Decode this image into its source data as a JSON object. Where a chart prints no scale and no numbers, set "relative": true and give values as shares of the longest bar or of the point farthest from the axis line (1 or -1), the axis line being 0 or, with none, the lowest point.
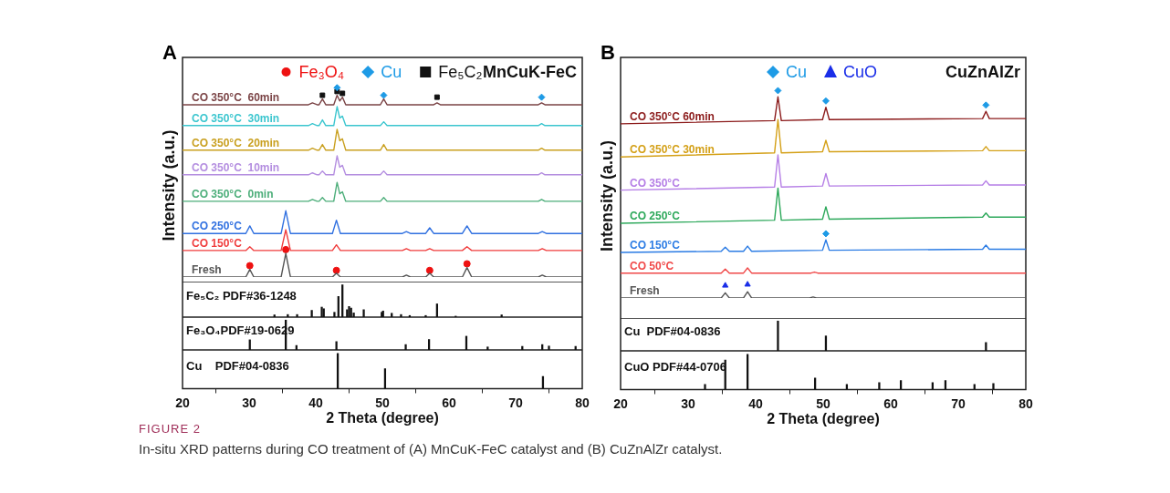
{
  "chart_data": [
    {
      "type": "line",
      "title": "A",
      "ylabel": "Intensity (a.u.)",
      "relative": true,
      "xlim": [
        20,
        80
      ],
      "tick_labels": false,
      "legend": "top",
      "annotations": [
        "MnCuK-FeC",
        "FIGURE 2",
        "In-situ XRD patterns during CO treatment of (A) MnCuK-FeC catalyst and (B) CuZnAlZr catalyst."
      ],
      "series": [
        {
          "name": "CO 350°C  60min",
          "color": "#7b4446",
          "x": [
            20,
            38.9,
            39.5,
            40.2,
            40.5,
            41,
            41.5,
            42.7,
            43.2,
            43.6,
            44,
            44.5,
            49.7,
            50.2,
            50.7,
            57.7,
            58.2,
            58.7,
            73.4,
            73.9,
            74.4,
            80
          ],
          "values": [
            0.91,
            0.91,
            0.92,
            0.91,
            0.91,
            0.94,
            0.91,
            0.91,
            0.96,
            0.93,
            0.95,
            0.91,
            0.91,
            0.94,
            0.91,
            0.91,
            0.92,
            0.91,
            0.91,
            0.92,
            0.91,
            0.91
          ]
        },
        {
          "name": "CO 350°C  30min",
          "color": "#3cc6cf",
          "x": [
            20,
            38.9,
            39.5,
            40.2,
            40.5,
            41,
            41.5,
            42.7,
            43.2,
            43.6,
            44,
            44.5,
            49.7,
            50.2,
            50.7,
            73.4,
            73.9,
            74.4,
            80
          ],
          "values": [
            0.8,
            0.8,
            0.81,
            0.8,
            0.8,
            0.83,
            0.8,
            0.8,
            0.9,
            0.84,
            0.85,
            0.8,
            0.8,
            0.82,
            0.8,
            0.8,
            0.81,
            0.8,
            0.8
          ]
        },
        {
          "name": "CO 350°C  20min",
          "color": "#c9a020",
          "x": [
            20,
            38.9,
            39.5,
            40.2,
            40.5,
            41,
            41.5,
            42.7,
            43.2,
            43.6,
            44,
            44.5,
            49.7,
            50.2,
            50.7,
            73.4,
            73.9,
            74.4,
            80
          ],
          "values": [
            0.67,
            0.67,
            0.68,
            0.67,
            0.67,
            0.7,
            0.67,
            0.67,
            0.78,
            0.72,
            0.73,
            0.67,
            0.67,
            0.7,
            0.67,
            0.67,
            0.68,
            0.67,
            0.67
          ]
        },
        {
          "name": "CO 350°C  10min",
          "color": "#b48ee0",
          "x": [
            20,
            38.9,
            39.5,
            40.2,
            40.5,
            41,
            41.5,
            42.7,
            43.2,
            43.6,
            44,
            44.5,
            49.7,
            50.2,
            50.7,
            73.4,
            73.9,
            74.4,
            80
          ],
          "values": [
            0.54,
            0.54,
            0.55,
            0.54,
            0.54,
            0.56,
            0.54,
            0.54,
            0.64,
            0.58,
            0.59,
            0.54,
            0.54,
            0.56,
            0.54,
            0.54,
            0.55,
            0.54,
            0.54
          ]
        },
        {
          "name": "CO 350°C  0min",
          "color": "#4dae7a",
          "x": [
            20,
            38.9,
            39.5,
            40.2,
            40.5,
            41,
            41.5,
            42.7,
            43.2,
            43.6,
            44,
            44.5,
            49.7,
            50.2,
            50.7,
            73.4,
            73.9,
            74.4,
            80
          ],
          "values": [
            0.4,
            0.4,
            0.41,
            0.4,
            0.4,
            0.42,
            0.4,
            0.4,
            0.5,
            0.44,
            0.45,
            0.4,
            0.4,
            0.42,
            0.4,
            0.4,
            0.41,
            0.4,
            0.4
          ]
        },
        {
          "name": "CO 250°C",
          "color": "#3070e0",
          "x": [
            20,
            29.5,
            30.1,
            30.7,
            34.8,
            35.5,
            36.2,
            42.5,
            43.1,
            43.7,
            53,
            53.6,
            54.2,
            56.5,
            57.1,
            57.7,
            62,
            62.7,
            63.4,
            73.4,
            74,
            74.6,
            80
          ],
          "values": [
            0.23,
            0.23,
            0.27,
            0.23,
            0.23,
            0.35,
            0.23,
            0.23,
            0.3,
            0.23,
            0.23,
            0.24,
            0.23,
            0.23,
            0.26,
            0.23,
            0.23,
            0.27,
            0.23,
            0.23,
            0.24,
            0.23,
            0.23
          ]
        },
        {
          "name": "CO 150°C",
          "color": "#f03c3c",
          "x": [
            20,
            29.5,
            30.1,
            30.7,
            34.8,
            35.5,
            36.2,
            42.5,
            43.1,
            43.7,
            53,
            53.6,
            54.2,
            56.5,
            57.1,
            57.7,
            62,
            62.7,
            63.4,
            73.4,
            74,
            74.6,
            80
          ],
          "values": [
            0.14,
            0.14,
            0.16,
            0.14,
            0.14,
            0.25,
            0.14,
            0.14,
            0.17,
            0.14,
            0.14,
            0.15,
            0.14,
            0.14,
            0.15,
            0.14,
            0.14,
            0.16,
            0.14,
            0.14,
            0.15,
            0.14,
            0.14
          ]
        },
        {
          "name": "Fresh",
          "color": "#555555",
          "x": [
            20,
            29.5,
            30.1,
            30.7,
            34.8,
            35.5,
            36.2,
            42.5,
            43.1,
            43.7,
            53,
            53.6,
            54.2,
            56.5,
            57.1,
            57.7,
            62,
            62.7,
            63.4,
            73.4,
            74,
            74.6,
            80
          ],
          "values": [
            0,
            0,
            0.04,
            0,
            0,
            0.125,
            0,
            0,
            0.02,
            0,
            0,
            0.01,
            0,
            0,
            0.02,
            0,
            0,
            0.05,
            0,
            0,
            0.01,
            0,
            0
          ]
        },
        {
          "name": "Fe₃O₄",
          "type": "scatter",
          "marker": "circle",
          "color": "#ee1111",
          "x": [
            30.1,
            35.5,
            43.1,
            57.1,
            62.7
          ],
          "values": [
            0.06,
            0.145,
            0.035,
            0.035,
            0.07
          ]
        },
        {
          "name": "Cu",
          "type": "scatter",
          "marker": "diamond",
          "color": "#1e9be6",
          "x": [
            43.2,
            50.2,
            73.9
          ],
          "values": [
            1.0,
            0.96,
            0.95
          ]
        },
        {
          "name": "Fe₅C₂",
          "type": "scatter",
          "marker": "square",
          "color": "#111111",
          "x": [
            41,
            43.2,
            44,
            58.2
          ],
          "values": [
            0.96,
            0.98,
            0.97,
            0.95
          ]
        }
      ]
    },
    {
      "type": "bar",
      "relative": true,
      "xlim": [
        20,
        80
      ],
      "tick_labels": false,
      "series": [
        {
          "name": "Fe₅C₂ PDF#36-1248",
          "color": "#111111",
          "x": [
            33.8,
            35.8,
            37.2,
            39.4,
            40.9,
            41.2,
            42.8,
            43.4,
            44.0,
            44.7,
            45.0,
            45.3,
            45.7,
            47.2,
            49.9,
            50.1,
            51.4,
            52.8,
            54.1,
            56.5,
            58.2,
            61.0,
            67.9
          ],
          "values": [
            0.07,
            0.08,
            0.08,
            0.21,
            0.31,
            0.26,
            0.15,
            0.64,
            1,
            0.23,
            0.33,
            0.28,
            0.13,
            0.23,
            0.15,
            0.19,
            0.12,
            0.08,
            0.05,
            0.05,
            0.41,
            0.03,
            0.07
          ]
        }
      ]
    },
    {
      "type": "bar",
      "relative": true,
      "xlim": [
        20,
        80
      ],
      "tick_labels": false,
      "series": [
        {
          "name": "Fe₃O₄PDF#19-0629",
          "color": "#111111",
          "x": [
            30.1,
            35.5,
            37.1,
            43.1,
            53.5,
            57.0,
            62.6,
            65.8,
            71.0,
            74.0,
            75.0,
            79.0
          ],
          "values": [
            0.34,
            1,
            0.15,
            0.28,
            0.18,
            0.35,
            0.46,
            0.1,
            0.12,
            0.18,
            0.13,
            0.12
          ]
        }
      ]
    },
    {
      "type": "bar",
      "relative": true,
      "xlim": [
        20,
        80
      ],
      "xticks": [
        20,
        30,
        40,
        50,
        60,
        70,
        80
      ],
      "xlabel": "2 Theta (degree)",
      "tick_labels": "x",
      "series": [
        {
          "name": "Cu    PDF#04-0836",
          "color": "#111111",
          "x": [
            43.3,
            50.4,
            74.1
          ],
          "values": [
            1,
            0.57,
            0.35
          ]
        }
      ]
    },
    {
      "type": "line",
      "title": "B",
      "ylabel": "Intensity (a.u.)",
      "relative": true,
      "xlim": [
        20,
        80
      ],
      "tick_labels": false,
      "legend": "top",
      "annotations": [
        "CuZnAlZr"
      ],
      "series": [
        {
          "name": "CO 350°C 60min",
          "color": "#8b1a1a",
          "x": [
            20,
            42.8,
            43.3,
            43.8,
            49.9,
            50.4,
            50.9,
            73.6,
            74.1,
            74.6,
            80
          ],
          "values": [
            0.84,
            0.855,
            0.97,
            0.855,
            0.86,
            0.92,
            0.86,
            0.865,
            0.9,
            0.865,
            0.865
          ]
        },
        {
          "name": "CO 350°C 30min",
          "color": "#d4a017",
          "x": [
            20,
            42.8,
            43.3,
            43.8,
            49.9,
            50.4,
            50.9,
            73.6,
            74.1,
            74.6,
            80
          ],
          "values": [
            0.68,
            0.7,
            0.86,
            0.7,
            0.705,
            0.76,
            0.705,
            0.71,
            0.73,
            0.71,
            0.71
          ]
        },
        {
          "name": "CO 350°C",
          "color": "#b57ee6",
          "x": [
            20,
            42.8,
            43.3,
            43.8,
            49.9,
            50.4,
            50.9,
            73.6,
            74.1,
            74.6,
            80
          ],
          "values": [
            0.52,
            0.535,
            0.69,
            0.535,
            0.54,
            0.6,
            0.54,
            0.545,
            0.565,
            0.545,
            0.545
          ]
        },
        {
          "name": "CO 250°C",
          "color": "#2ca85a",
          "x": [
            20,
            42.8,
            43.3,
            43.8,
            49.9,
            50.4,
            50.9,
            73.6,
            74.1,
            74.6,
            80
          ],
          "values": [
            0.36,
            0.375,
            0.53,
            0.375,
            0.38,
            0.44,
            0.38,
            0.39,
            0.41,
            0.39,
            0.39
          ]
        },
        {
          "name": "CO 150°C",
          "color": "#2a7be4",
          "x": [
            20,
            34.9,
            35.5,
            36.1,
            38.2,
            38.8,
            39.4,
            49.9,
            50.4,
            50.9,
            73.6,
            74.1,
            74.6,
            80
          ],
          "values": [
            0.22,
            0.225,
            0.245,
            0.225,
            0.225,
            0.25,
            0.225,
            0.23,
            0.28,
            0.23,
            0.235,
            0.255,
            0.235,
            0.235
          ]
        },
        {
          "name": "CO 50°C",
          "color": "#f04848",
          "x": [
            20,
            34.9,
            35.5,
            36.1,
            38.2,
            38.8,
            39.4,
            48.2,
            48.7,
            49.2,
            80
          ],
          "values": [
            0.12,
            0.12,
            0.14,
            0.12,
            0.12,
            0.145,
            0.12,
            0.12,
            0.125,
            0.12,
            0.12
          ]
        },
        {
          "name": "Fresh",
          "color": "#555555",
          "x": [
            20,
            34.9,
            35.5,
            36.1,
            38.2,
            38.8,
            39.4,
            48,
            48.5,
            49,
            80
          ],
          "values": [
            0,
            0,
            0.025,
            0,
            0,
            0.03,
            0,
            0,
            0.005,
            0,
            0
          ]
        },
        {
          "name": "Cu",
          "type": "scatter",
          "marker": "diamond",
          "color": "#1e9be6",
          "x": [
            43.3,
            50.4,
            74.1,
            50.4
          ],
          "values": [
            1.0,
            0.95,
            0.93,
            0.31
          ]
        },
        {
          "name": "CuO",
          "type": "scatter",
          "marker": "triangle",
          "color": "#1a2ee8",
          "x": [
            35.5,
            38.8
          ],
          "values": [
            0.06,
            0.065
          ]
        }
      ]
    },
    {
      "type": "bar",
      "relative": true,
      "xlim": [
        20,
        80
      ],
      "tick_labels": false,
      "series": [
        {
          "name": "Cu  PDF#04-0836",
          "color": "#111111",
          "x": [
            43.3,
            50.4,
            74.1
          ],
          "values": [
            1,
            0.5,
            0.28
          ]
        }
      ]
    },
    {
      "type": "bar",
      "relative": true,
      "xlim": [
        20,
        80
      ],
      "xticks": [
        20,
        30,
        40,
        50,
        60,
        70,
        80
      ],
      "xlabel": "2 Theta (degree)",
      "tick_labels": "x",
      "series": [
        {
          "name": "CuO PDF#44-0706",
          "color": "#111111",
          "x": [
            32.5,
            35.5,
            38.8,
            48.8,
            53.5,
            58.3,
            61.5,
            66.2,
            68.1,
            72.4,
            75.2
          ],
          "values": [
            0.15,
            0.84,
            1,
            0.33,
            0.15,
            0.2,
            0.26,
            0.2,
            0.26,
            0.15,
            0.17
          ]
        }
      ]
    }
  ]
}
